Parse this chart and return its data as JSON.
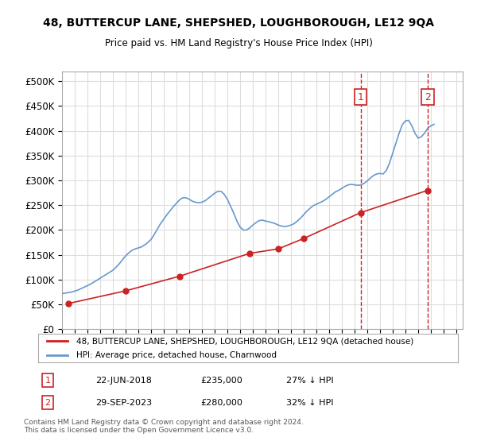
{
  "title": "48, BUTTERCUP LANE, SHEPSHED, LOUGHBOROUGH, LE12 9QA",
  "subtitle": "Price paid vs. HM Land Registry's House Price Index (HPI)",
  "ylabel_ticks": [
    "£0",
    "£50K",
    "£100K",
    "£150K",
    "£200K",
    "£250K",
    "£300K",
    "£350K",
    "£400K",
    "£450K",
    "£500K"
  ],
  "ytick_values": [
    0,
    50000,
    100000,
    150000,
    200000,
    250000,
    300000,
    350000,
    400000,
    450000,
    500000
  ],
  "ylim": [
    0,
    520000
  ],
  "xlim_start": 1995.0,
  "xlim_end": 2026.5,
  "hpi_color": "#6699cc",
  "price_color": "#cc2222",
  "dashed_line_color": "#cc2222",
  "annotation_box_color": "#cc2222",
  "background_color": "#ffffff",
  "grid_color": "#dddddd",
  "legend_label_price": "48, BUTTERCUP LANE, SHEPSHED, LOUGHBOROUGH, LE12 9QA (detached house)",
  "legend_label_hpi": "HPI: Average price, detached house, Charnwood",
  "sale1_label": "1",
  "sale1_date": "22-JUN-2018",
  "sale1_price": "£235,000",
  "sale1_note": "27% ↓ HPI",
  "sale1_year": 2018.47,
  "sale1_value": 235000,
  "sale2_label": "2",
  "sale2_date": "29-SEP-2023",
  "sale2_price": "£280,000",
  "sale2_note": "32% ↓ HPI",
  "sale2_year": 2023.75,
  "sale2_value": 280000,
  "footer": "Contains HM Land Registry data © Crown copyright and database right 2024.\nThis data is licensed under the Open Government Licence v3.0.",
  "hpi_x": [
    1995.0,
    1995.25,
    1995.5,
    1995.75,
    1996.0,
    1996.25,
    1996.5,
    1996.75,
    1997.0,
    1997.25,
    1997.5,
    1997.75,
    1998.0,
    1998.25,
    1998.5,
    1998.75,
    1999.0,
    1999.25,
    1999.5,
    1999.75,
    2000.0,
    2000.25,
    2000.5,
    2000.75,
    2001.0,
    2001.25,
    2001.5,
    2001.75,
    2002.0,
    2002.25,
    2002.5,
    2002.75,
    2003.0,
    2003.25,
    2003.5,
    2003.75,
    2004.0,
    2004.25,
    2004.5,
    2004.75,
    2005.0,
    2005.25,
    2005.5,
    2005.75,
    2006.0,
    2006.25,
    2006.5,
    2006.75,
    2007.0,
    2007.25,
    2007.5,
    2007.75,
    2008.0,
    2008.25,
    2008.5,
    2008.75,
    2009.0,
    2009.25,
    2009.5,
    2009.75,
    2010.0,
    2010.25,
    2010.5,
    2010.75,
    2011.0,
    2011.25,
    2011.5,
    2011.75,
    2012.0,
    2012.25,
    2012.5,
    2012.75,
    2013.0,
    2013.25,
    2013.5,
    2013.75,
    2014.0,
    2014.25,
    2014.5,
    2014.75,
    2015.0,
    2015.25,
    2015.5,
    2015.75,
    2016.0,
    2016.25,
    2016.5,
    2016.75,
    2017.0,
    2017.25,
    2017.5,
    2017.75,
    2018.0,
    2018.25,
    2018.5,
    2018.75,
    2019.0,
    2019.25,
    2019.5,
    2019.75,
    2020.0,
    2020.25,
    2020.5,
    2020.75,
    2021.0,
    2021.25,
    2021.5,
    2021.75,
    2022.0,
    2022.25,
    2022.5,
    2022.75,
    2023.0,
    2023.25,
    2023.5,
    2023.75,
    2024.0,
    2024.25
  ],
  "hpi_y": [
    72000,
    73000,
    74000,
    75000,
    77000,
    79000,
    82000,
    85000,
    88000,
    91000,
    95000,
    99000,
    103000,
    107000,
    111000,
    115000,
    119000,
    125000,
    132000,
    140000,
    148000,
    154000,
    159000,
    162000,
    164000,
    166000,
    170000,
    175000,
    181000,
    191000,
    202000,
    213000,
    222000,
    231000,
    239000,
    247000,
    254000,
    261000,
    265000,
    265000,
    262000,
    258000,
    256000,
    255000,
    256000,
    259000,
    264000,
    269000,
    274000,
    278000,
    278000,
    272000,
    262000,
    248000,
    234000,
    218000,
    206000,
    200000,
    200000,
    204000,
    210000,
    215000,
    219000,
    220000,
    218000,
    217000,
    215000,
    213000,
    210000,
    208000,
    207000,
    208000,
    210000,
    213000,
    218000,
    224000,
    231000,
    238000,
    244000,
    249000,
    252000,
    255000,
    258000,
    262000,
    267000,
    272000,
    277000,
    280000,
    284000,
    288000,
    291000,
    292000,
    291000,
    290000,
    291000,
    294000,
    299000,
    305000,
    310000,
    313000,
    314000,
    313000,
    320000,
    335000,
    355000,
    375000,
    395000,
    412000,
    420000,
    421000,
    410000,
    395000,
    385000,
    388000,
    395000,
    405000,
    410000,
    413000
  ],
  "price_x": [
    1995.5,
    2000.0,
    2004.25,
    2009.75,
    2012.0,
    2014.0,
    2018.47,
    2023.75
  ],
  "price_y": [
    52000,
    77500,
    107000,
    153000,
    162000,
    183000,
    235000,
    280000
  ]
}
